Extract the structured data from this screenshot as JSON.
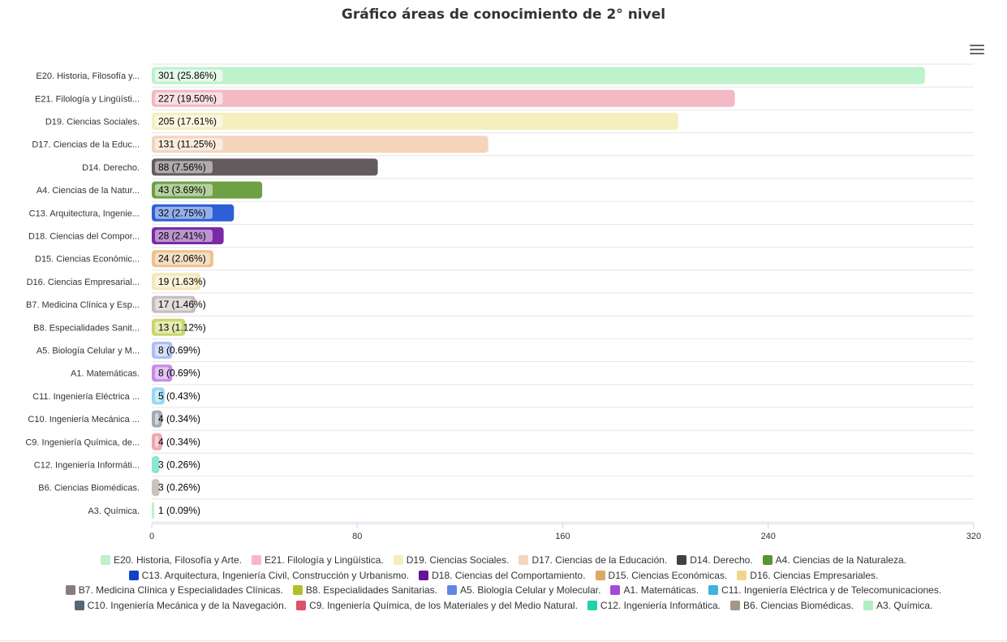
{
  "title": "Gráfico áreas de conocimiento de 2° nivel",
  "menu_icon": "hamburger-menu-icon",
  "chart_data": {
    "type": "bar",
    "orientation": "horizontal",
    "title": "Gráfico áreas de conocimiento de 2° nivel",
    "xlim": [
      0,
      320
    ],
    "xticks": [
      "0",
      "80",
      "160",
      "240",
      "320"
    ],
    "grid": true,
    "legend_position": "bottom",
    "categories": [
      "E20. Historia, Filosofía y...",
      "E21. Filología y Lingüísti...",
      "D19. Ciencias Sociales.",
      "D17. Ciencias de la Educ...",
      "D14. Derecho.",
      "A4. Ciencias de la Natur...",
      "C13. Arquitectura, Ingenie...",
      "D18. Ciencias del Compor...",
      "D15. Ciencias Económic...",
      "D16. Ciencias Empresarial...",
      "B7. Medicina Clínica y Esp...",
      "B8. Especialidades Sanit...",
      "A5. Biología Celular y M...",
      "A1. Matemáticas.",
      "C11. Ingeniería Eléctrica ...",
      "C10. Ingeniería Mecánica ...",
      "C9. Ingeniería Química, de...",
      "C12. Ingeniería Informáti...",
      "B6. Ciencias Biomédicas.",
      "A3. Química."
    ],
    "values": [
      301,
      227,
      205,
      131,
      88,
      43,
      32,
      28,
      24,
      19,
      17,
      13,
      8,
      8,
      5,
      4,
      4,
      3,
      3,
      1
    ],
    "data_labels": [
      "301 (25.86%)",
      "227 (19.50%)",
      "205 (17.61%)",
      "131 (11.25%)",
      "88 (7.56%)",
      "43 (3.69%)",
      "32 (2.75%)",
      "28 (2.41%)",
      "24 (2.06%)",
      "19 (1.63%)",
      "17 (1.46%)",
      "13 (1.12%)",
      "8 (0.69%)",
      "8 (0.69%)",
      "5 (0.43%)",
      "4 (0.34%)",
      "4 (0.34%)",
      "3 (0.26%)",
      "3 (0.26%)",
      "1 (0.09%)"
    ],
    "colors": [
      "#bdf2cb",
      "#f3b9c4",
      "#f5efbd",
      "#f4d4bb",
      "#625c5f",
      "#6ea044",
      "#2e5fd6",
      "#7b2aa5",
      "#eec28e",
      "#f7e7b7",
      "#c6bcbc",
      "#c9d66a",
      "#aebff0",
      "#c88ae8",
      "#98d7ef",
      "#a3aaaf",
      "#efa6b0",
      "#8be7cf",
      "#cbc3bb",
      "#bdf2cb"
    ],
    "label_bg_colors": [
      "#e6faea",
      "#f9dfe4",
      "#faf7e0",
      "#faebdf",
      "#b0acad",
      "#b6d1a1",
      "#94afec",
      "#bc94d0",
      "#f5dfc4",
      "#fbf3db",
      "#e3dede",
      "#e4ebb4",
      "#d7dff8",
      "#e4c4f3",
      "#cbebf7",
      "#d1d4d7",
      "#f7d2d7",
      "#c5f3e7",
      "#e5e1dd",
      "#e6faea"
    ]
  },
  "legend": {
    "rows": [
      [
        {
          "label": "E20. Historia, Filosofía y Arte.",
          "color": "#bdf2cb"
        },
        {
          "label": "E21. Filología y Lingüística.",
          "color": "#f3b9c4"
        },
        {
          "label": "D19. Ciencias Sociales.",
          "color": "#f5efbd"
        },
        {
          "label": "D17. Ciencias de la Educación.",
          "color": "#f4d4bb"
        },
        {
          "label": "D14. Derecho.",
          "color": "#454143"
        },
        {
          "label": "A4. Ciencias de la Naturaleza.",
          "color": "#589532"
        }
      ],
      [
        {
          "label": "C13. Arquitectura, Ingeniería Civil, Construcción y Urbanismo.",
          "color": "#0f43c8"
        },
        {
          "label": "D18. Ciencias del Comportamiento.",
          "color": "#681496"
        },
        {
          "label": "D15. Ciencias Económicas.",
          "color": "#dba867"
        },
        {
          "label": "D16. Ciencias Empresariales.",
          "color": "#f0d68d"
        }
      ],
      [
        {
          "label": "B7. Medicina Clínica y Especialidades Clínicas.",
          "color": "#8a7d7f"
        },
        {
          "label": "B8. Especialidades Sanitarias.",
          "color": "#b0c02b"
        },
        {
          "label": "A5. Biología Celular y Molecular.",
          "color": "#6186e3"
        },
        {
          "label": "A1. Matemáticas.",
          "color": "#a64ad8"
        },
        {
          "label": "C11. Ingeniería Eléctrica y de Telecomunicaciones.",
          "color": "#3fb2de"
        }
      ],
      [
        {
          "label": "C10. Ingeniería Mecánica y de la Navegación.",
          "color": "#56666f"
        },
        {
          "label": "C9. Ingeniería Química, de los Materiales y del Medio Natural.",
          "color": "#d95267"
        },
        {
          "label": "C12. Ingeniería Informática.",
          "color": "#1fd2a7"
        },
        {
          "label": "B6. Ciencias Biomédicas.",
          "color": "#a39789"
        },
        {
          "label": "A3. Química.",
          "color": "#aef0c4"
        }
      ]
    ]
  }
}
